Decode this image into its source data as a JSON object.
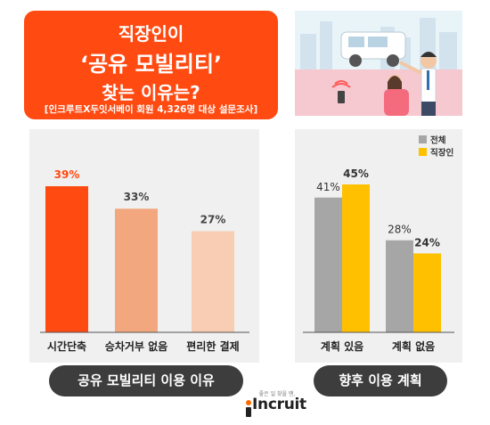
{
  "header": {
    "line1": "직장인이",
    "line2": "‘공유 모빌리티’",
    "line3": "찾는 이유는?",
    "source": "[인크루트X두잇서베이 회원 4,326명 대상 설문조사]"
  },
  "chart_data": [
    {
      "type": "bar",
      "title": "공유 모빌리티 이용 이유",
      "categories": [
        "시간단축",
        "승차거부 없음",
        "편리한 결제"
      ],
      "values": [
        39,
        33,
        27
      ],
      "value_labels": [
        "39%",
        "33%",
        "27%"
      ],
      "colors": [
        "#ff4a12",
        "#f2a77e",
        "#f8cdb3"
      ],
      "ylim": [
        0,
        50
      ],
      "grid": false
    },
    {
      "type": "bar",
      "title": "향후 이용 계획",
      "categories": [
        "계획 있음",
        "계획 없음"
      ],
      "series": [
        {
          "name": "전체",
          "values": [
            41,
            28
          ],
          "labels": [
            "41%",
            "28%"
          ],
          "color": "#a6a6a6"
        },
        {
          "name": "직장인",
          "values": [
            45,
            24
          ],
          "labels": [
            "45%",
            "24%"
          ],
          "color": "#ffc000"
        }
      ],
      "ylim": [
        0,
        50
      ],
      "legend": "top-right",
      "grid": false
    }
  ],
  "brand": {
    "tagline": "좋은 일 찾을 땐,",
    "name": "Incruit"
  }
}
